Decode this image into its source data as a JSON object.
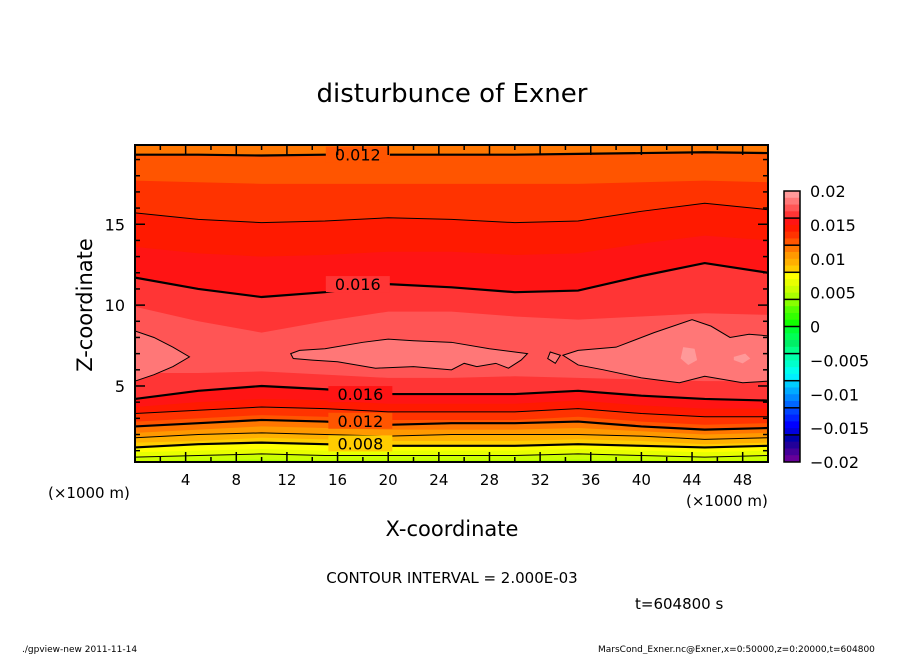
{
  "chart_data": {
    "type": "contour",
    "title": "disturbunce of Exner",
    "xlabel": "X-coordinate",
    "ylabel": "Z-coordinate",
    "x_unit_left": "(×1000 m)",
    "x_unit_right": "(×1000 m)",
    "xlim": [
      0,
      50
    ],
    "ylim": [
      0.3,
      19.9
    ],
    "xticks": [
      4,
      8,
      12,
      16,
      20,
      24,
      28,
      32,
      36,
      40,
      44,
      48
    ],
    "xtick_labels": [
      "4",
      "8",
      "12",
      "16",
      "20",
      "24",
      "28",
      "32",
      "36",
      "40",
      "44",
      "48"
    ],
    "yticks": [
      5,
      10,
      15
    ],
    "ytick_labels": [
      "5",
      "10",
      "15"
    ],
    "contour_interval_text": "CONTOUR INTERVAL = 2.000E-03",
    "time_text": "t=604800 s",
    "colorbar": {
      "range": [
        -0.02,
        0.02
      ],
      "step": 0.001,
      "labels": [
        "0.02",
        "0.015",
        "0.01",
        "0.005",
        "0",
        "-0.005",
        "-0.01",
        "-0.015",
        "-0.02"
      ],
      "colors_top_to_bottom": [
        "#ff9999",
        "#ff7777",
        "#ff5555",
        "#ff3535",
        "#ff1414",
        "#ff1a00",
        "#ff3300",
        "#ff5500",
        "#ff7700",
        "#ff9900",
        "#ffb000",
        "#ffcc00",
        "#ffff00",
        "#e8ff00",
        "#ccff00",
        "#aaff00",
        "#88ff00",
        "#55ff00",
        "#33ff00",
        "#11ff00",
        "#00ff33",
        "#00ff55",
        "#00ee66",
        "#00ff88",
        "#00ffaa",
        "#00ffcc",
        "#00ffee",
        "#00f0ff",
        "#00ccff",
        "#00aaff",
        "#0088ff",
        "#0066ff",
        "#0044ff",
        "#0022ff",
        "#0000ff",
        "#0000dd",
        "#0000aa",
        "#220099",
        "#440099",
        "#660099"
      ]
    },
    "base_color": "#aaff00",
    "x_samples": [
      0,
      5,
      10,
      15,
      20,
      25,
      30,
      35,
      40,
      45,
      50
    ],
    "levels": [
      {
        "level": 0.005,
        "color": "#ccff00",
        "lower": [
          0.35,
          0.4,
          0.45,
          0.4,
          0.4,
          0.4,
          0.4,
          0.45,
          0.4,
          0.35,
          0.4
        ],
        "upper": null
      },
      {
        "level": 0.006,
        "color": "#e8ff00",
        "lower": [
          0.6,
          0.7,
          0.8,
          0.7,
          0.7,
          0.7,
          0.7,
          0.8,
          0.7,
          0.6,
          0.7
        ],
        "upper": null
      },
      {
        "level": 0.007,
        "color": "#ffff00",
        "lower": [
          0.9,
          1.0,
          1.1,
          1.0,
          1.0,
          1.0,
          1.0,
          1.1,
          1.0,
          0.9,
          1.0
        ],
        "upper": null
      },
      {
        "level": 0.008,
        "color": "#ffcc00",
        "lower": [
          1.2,
          1.4,
          1.5,
          1.4,
          1.3,
          1.3,
          1.3,
          1.4,
          1.3,
          1.2,
          1.3
        ],
        "upper": null
      },
      {
        "level": 0.009,
        "color": "#ffb000",
        "lower": [
          1.5,
          1.6,
          1.8,
          1.7,
          1.6,
          1.6,
          1.6,
          1.7,
          1.6,
          1.4,
          1.5
        ],
        "upper": null
      },
      {
        "level": 0.01,
        "color": "#ff9900",
        "lower": [
          1.8,
          2.0,
          2.1,
          2.0,
          1.9,
          2.0,
          2.0,
          2.0,
          1.9,
          1.7,
          1.8
        ],
        "upper": null
      },
      {
        "level": 0.011,
        "color": "#ff7700",
        "lower": [
          2.1,
          2.3,
          2.5,
          2.4,
          2.3,
          2.3,
          2.3,
          2.4,
          2.2,
          2.0,
          2.1
        ],
        "upper": null
      },
      {
        "level": 0.012,
        "color": "#ff5500",
        "lower": [
          2.5,
          2.7,
          2.9,
          2.8,
          2.6,
          2.7,
          2.7,
          2.8,
          2.5,
          2.3,
          2.4
        ],
        "upper": [
          19.3,
          19.3,
          19.25,
          19.3,
          19.3,
          19.3,
          19.3,
          19.35,
          19.4,
          19.45,
          19.4
        ]
      },
      {
        "level": 0.013,
        "color": "#ff3300",
        "lower": [
          2.8,
          3.0,
          3.2,
          3.1,
          2.9,
          2.9,
          2.9,
          3.1,
          2.8,
          2.6,
          2.7
        ],
        "upper": [
          17.7,
          17.6,
          17.5,
          17.5,
          17.5,
          17.5,
          17.5,
          17.5,
          17.6,
          17.7,
          17.6
        ]
      },
      {
        "level": 0.014,
        "color": "#ff1a00",
        "lower": [
          3.3,
          3.5,
          3.7,
          3.6,
          3.4,
          3.4,
          3.4,
          3.6,
          3.3,
          3.1,
          3.1
        ],
        "upper": [
          15.7,
          15.3,
          15.1,
          15.2,
          15.4,
          15.3,
          15.1,
          15.2,
          15.8,
          16.3,
          15.9
        ]
      },
      {
        "level": 0.015,
        "color": "#ff1414",
        "lower": [
          3.7,
          4.0,
          4.2,
          4.1,
          3.9,
          3.9,
          3.9,
          4.1,
          3.8,
          3.6,
          3.6
        ],
        "upper": [
          13.6,
          13.2,
          13.0,
          13.1,
          13.3,
          13.3,
          13.1,
          13.2,
          13.8,
          14.3,
          14.0
        ]
      },
      {
        "level": 0.016,
        "color": "#ff3535",
        "lower": [
          4.2,
          4.7,
          5.0,
          4.8,
          4.5,
          4.5,
          4.5,
          4.7,
          4.4,
          4.2,
          4.1
        ],
        "upper": [
          11.7,
          11.0,
          10.5,
          10.8,
          11.3,
          11.1,
          10.8,
          10.9,
          11.8,
          12.6,
          12.0
        ]
      },
      {
        "level": 0.017,
        "color": "#ff5555",
        "lower": [
          5.8,
          5.8,
          5.9,
          5.7,
          5.5,
          5.5,
          5.6,
          5.5,
          5.4,
          5.3,
          5.3
        ],
        "upper": [
          9.9,
          9.0,
          8.3,
          9.0,
          9.6,
          9.6,
          9.3,
          9.1,
          9.3,
          9.5,
          9.4
        ]
      }
    ],
    "blobs": [
      {
        "level": 0.018,
        "color": "#ff7777",
        "points": [
          [
            0,
            8.4
          ],
          [
            1.5,
            8.0
          ],
          [
            3,
            7.4
          ],
          [
            4.3,
            6.8
          ],
          [
            3,
            6.2
          ],
          [
            1.5,
            5.7
          ],
          [
            0,
            5.3
          ]
        ]
      },
      {
        "level": 0.018,
        "color": "#ff7777",
        "points": [
          [
            12.3,
            7.0
          ],
          [
            13,
            7.2
          ],
          [
            15,
            7.3
          ],
          [
            18,
            7.7
          ],
          [
            20,
            7.9
          ],
          [
            22,
            7.8
          ],
          [
            25,
            7.7
          ],
          [
            28,
            7.3
          ],
          [
            31,
            7.0
          ],
          [
            30.5,
            6.6
          ],
          [
            29.5,
            6.1
          ],
          [
            28.5,
            6.4
          ],
          [
            27,
            6.2
          ],
          [
            26,
            6.4
          ],
          [
            25,
            6.0
          ],
          [
            22,
            6.2
          ],
          [
            19,
            6.1
          ],
          [
            16,
            6.5
          ],
          [
            14,
            6.6
          ],
          [
            12.5,
            6.7
          ]
        ]
      },
      {
        "level": 0.018,
        "color": "#ff7777",
        "points": [
          [
            32.8,
            7.1
          ],
          [
            33.6,
            6.9
          ],
          [
            33.2,
            6.4
          ],
          [
            32.6,
            6.7
          ]
        ]
      },
      {
        "level": 0.018,
        "color": "#ff7777",
        "points": [
          [
            33.8,
            6.9
          ],
          [
            35,
            7.2
          ],
          [
            38,
            7.4
          ],
          [
            41,
            8.3
          ],
          [
            44,
            9.1
          ],
          [
            45.5,
            8.7
          ],
          [
            47,
            8.0
          ],
          [
            48.5,
            8.2
          ],
          [
            50,
            8.1
          ],
          [
            50,
            5.3
          ],
          [
            48,
            5.2
          ],
          [
            45,
            5.6
          ],
          [
            43,
            5.2
          ],
          [
            40,
            5.5
          ],
          [
            37,
            6.0
          ],
          [
            35,
            6.3
          ]
        ]
      },
      {
        "level": 0.019,
        "color": "#ff9999",
        "points": [
          [
            43.3,
            7.4
          ],
          [
            44.2,
            7.3
          ],
          [
            44.4,
            6.6
          ],
          [
            43.7,
            6.3
          ],
          [
            43.1,
            6.7
          ]
        ]
      },
      {
        "level": 0.019,
        "color": "#ff9999",
        "points": [
          [
            47.3,
            6.8
          ],
          [
            48.2,
            7.0
          ],
          [
            48.6,
            6.7
          ],
          [
            48,
            6.4
          ],
          [
            47.3,
            6.6
          ]
        ]
      }
    ],
    "contour_lines": [
      0.006,
      0.008,
      0.01,
      0.012,
      0.014,
      0.016,
      0.018
    ],
    "thick_lines": [
      0.008,
      0.012,
      0.016
    ],
    "contour_labels": [
      {
        "text": "0.012",
        "x": 17.6,
        "z": 19.3,
        "bg": "#ff5500"
      },
      {
        "text": "0.016",
        "x": 17.6,
        "z": 11.3,
        "bg": "#ff3535"
      },
      {
        "text": "0.016",
        "x": 17.8,
        "z": 4.5,
        "bg": "#ff1414"
      },
      {
        "text": "0.012",
        "x": 17.8,
        "z": 2.85,
        "bg": "#ff5500"
      },
      {
        "text": "0.008",
        "x": 17.8,
        "z": 1.45,
        "bg": "#ffcc00"
      }
    ]
  },
  "footer": {
    "left": "./gpview-new   2011-11-14",
    "right": "MarsCond_Exner.nc@Exner,x=0:50000,z=0:20000,t=604800"
  }
}
